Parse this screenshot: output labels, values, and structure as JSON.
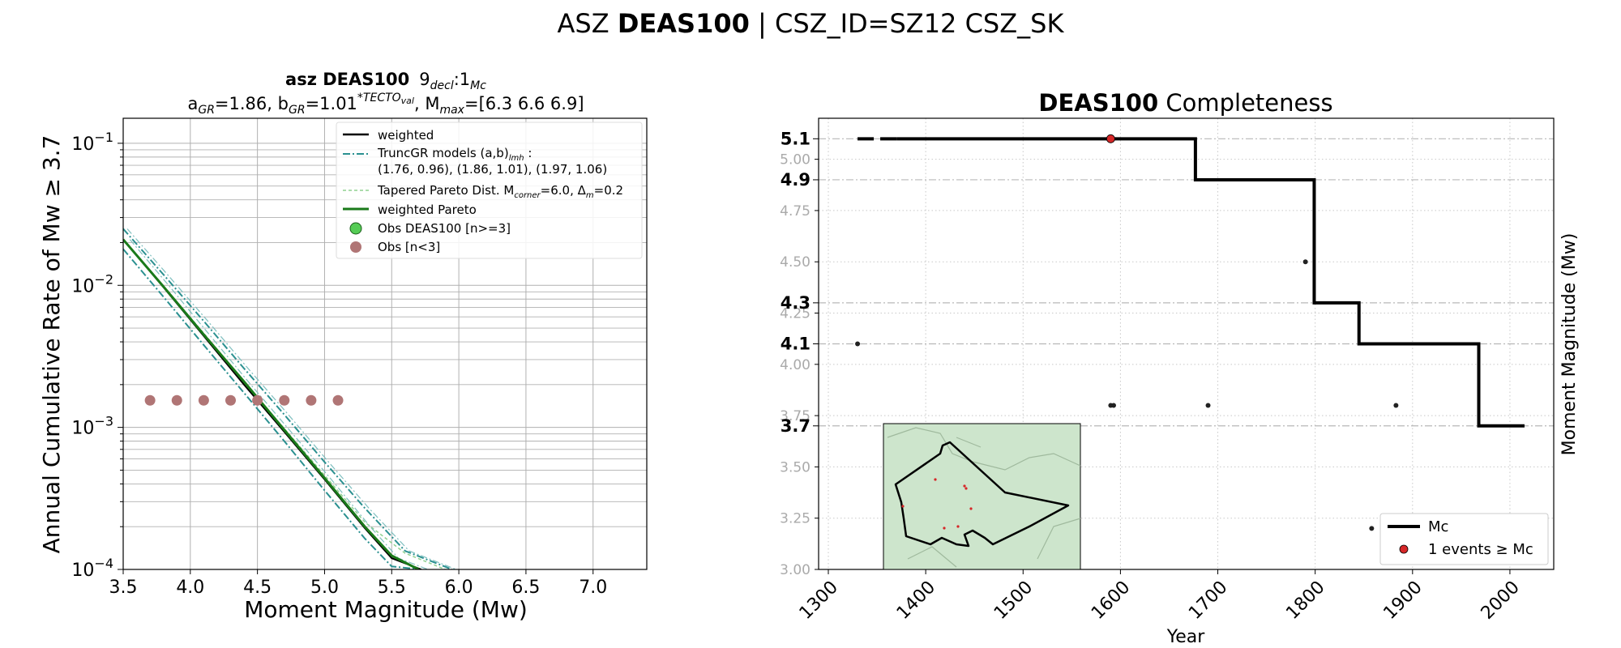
{
  "figure": {
    "suptitle_prefix": "ASZ",
    "suptitle_bold": "DEAS100",
    "suptitle_suffix": " | CSZ_ID=SZ12 CSZ_SK"
  },
  "chart_data": [
    {
      "type": "line",
      "title_line1_bold": "asz DEAS100",
      "title_line1_rest": "9",
      "title_line1_sub1": "decl",
      "title_line1_mid": ":1",
      "title_line1_sub2": "Mc",
      "title_line2": {
        "a_sym": "a",
        "a_sub": "GR",
        "a_val": "=1.86,  ",
        "b_sym": "b",
        "b_sub": "GR",
        "b_val": "=1.01",
        "b_sup": "*TECTO",
        "b_sup_sub": "val",
        "m_sym": ", M",
        "m_sub": "max",
        "m_val": "=[6.3 6.6 6.9]"
      },
      "xlabel": "Moment Magnitude (Mw)",
      "ylabel": "Annual Cumulative Rate of Mw  ≥  3.7",
      "xlim": [
        3.5,
        7.4
      ],
      "ylim": [
        0.0001,
        0.15
      ],
      "yscale": "log",
      "grid": true,
      "legend_position": "upper right",
      "xticks": [
        "3.5",
        "4.0",
        "4.5",
        "5.0",
        "5.5",
        "6.0",
        "6.5",
        "7.0"
      ],
      "yticks": [
        {
          "value": 0.0001,
          "base": "10",
          "exp": "−4"
        },
        {
          "value": 0.001,
          "base": "10",
          "exp": "−3"
        },
        {
          "value": 0.01,
          "base": "10",
          "exp": "−2"
        },
        {
          "value": 0.1,
          "base": "10",
          "exp": "−1"
        }
      ],
      "legend": [
        {
          "label": "weighted",
          "style": "black-solid"
        },
        {
          "label": "TruncGR models (a,b)",
          "sub": "lmh",
          "suffix": " :",
          "line2": " (1.76, 0.96), (1.86, 1.01), (1.97, 1.06)",
          "style": "teal-dashdot"
        },
        {
          "label": "Tapered Pareto Dist. M",
          "sub": "corner",
          "suffix": "=6.0, Δ",
          "sub2": "m",
          "suffix2": "=0.2",
          "style": "lightgreen-dashed"
        },
        {
          "label": "weighted Pareto",
          "style": "green-solid"
        },
        {
          "label": "Obs DEAS100 [n>=3]",
          "style": "green-dot"
        },
        {
          "label": "Obs [n<3]",
          "style": "rosybrown-dot"
        }
      ],
      "colors": {
        "weighted": "#000000",
        "truncgr": "#2a9090",
        "tapered": "#8fd08f",
        "weighted_pareto": "#1a7a1a",
        "obs_ge3": "#55cc55",
        "obs_lt3": "#b07575"
      },
      "series": [
        {
          "name": "weighted Pareto",
          "x": [
            3.5,
            3.8,
            4.1,
            4.4,
            4.7,
            5.0,
            5.3,
            5.5,
            5.7
          ],
          "y": [
            0.021,
            0.0098,
            0.0045,
            0.0021,
            0.00096,
            0.00044,
            0.0002,
            0.000125,
            0.0001
          ]
        },
        {
          "name": "TruncGR models (a,b) low",
          "x": [
            3.5,
            3.8,
            4.1,
            4.4,
            4.7,
            5.0,
            5.3,
            5.5,
            5.72
          ],
          "y": [
            0.018,
            0.0083,
            0.0038,
            0.00175,
            0.0008,
            0.00036,
            0.000165,
            0.000105,
            0.0001
          ]
        },
        {
          "name": "TruncGR models (a,b) mid",
          "x": [
            3.5,
            3.8,
            4.1,
            4.4,
            4.7,
            5.0,
            5.3,
            5.5,
            5.72
          ],
          "y": [
            0.021,
            0.0097,
            0.0044,
            0.002,
            0.00093,
            0.00043,
            0.000195,
            0.00012,
            0.0001
          ]
        },
        {
          "name": "TruncGR models (a,b) high",
          "x": [
            3.5,
            3.8,
            4.1,
            4.4,
            4.7,
            5.0,
            5.3,
            5.6,
            5.95
          ],
          "y": [
            0.025,
            0.0119,
            0.0056,
            0.0026,
            0.00123,
            0.00057,
            0.00027,
            0.000135,
            0.0001
          ]
        },
        {
          "name": "Tapered Pareto",
          "x": [
            3.5,
            3.8,
            4.1,
            4.4,
            4.7,
            5.0,
            5.3,
            5.6,
            5.9
          ],
          "y": [
            0.021,
            0.0099,
            0.0046,
            0.0021,
            0.00098,
            0.00046,
            0.000215,
            0.00013,
            0.0001
          ]
        },
        {
          "name": "Obs [n<3]",
          "x": [
            3.7,
            3.9,
            4.1,
            4.3,
            4.5,
            4.7,
            4.9,
            5.1
          ],
          "y": [
            0.00155,
            0.00155,
            0.00155,
            0.00155,
            0.00155,
            0.00155,
            0.00155,
            0.00155
          ]
        }
      ]
    },
    {
      "type": "line",
      "title_bold": "DEAS100",
      "title_rest": " Completeness",
      "xlabel": "Year",
      "ylabel": "Moment Magnitude (Mw)",
      "xlim": [
        1290,
        2045
      ],
      "ylim": [
        3.0,
        5.2
      ],
      "grid": true,
      "legend_position": "lower right",
      "xticks": [
        "1300",
        "1400",
        "1500",
        "1600",
        "1700",
        "1800",
        "1900",
        "2000"
      ],
      "yticks_minor": [
        "3.00",
        "3.25",
        "3.50",
        "3.75",
        "4.00",
        "4.25",
        "4.50",
        "4.75",
        "5.00"
      ],
      "yticks_major": [
        "3.7",
        "4.1",
        "4.3",
        "4.9",
        "5.1"
      ],
      "legend": [
        {
          "label": "Mc",
          "style": "black-solid"
        },
        {
          "label": "1 events  ≥  Mc",
          "style": "red-dot"
        }
      ],
      "colors": {
        "mc": "#000000",
        "events": "#d62728"
      },
      "mc_step": {
        "x": [
          1330,
          1677,
          1677,
          1799,
          1799,
          1845,
          1845,
          1968,
          1968,
          2015
        ],
        "y": [
          5.1,
          5.1,
          4.9,
          4.9,
          4.3,
          4.3,
          4.1,
          4.1,
          3.7,
          3.7
        ]
      },
      "events": {
        "x": [
          1330,
          1590,
          1593,
          1690,
          1790,
          1858,
          1883
        ],
        "y": [
          4.1,
          3.8,
          3.8,
          3.8,
          4.5,
          3.2,
          3.8
        ]
      },
      "events_above_mc": {
        "x": [
          1590
        ],
        "y": [
          5.1
        ]
      },
      "inset_map": {
        "background": "#cde5cc"
      }
    }
  ]
}
